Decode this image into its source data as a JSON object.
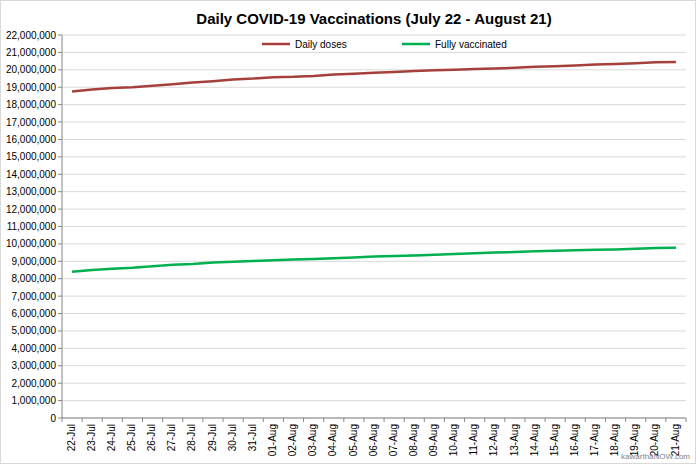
{
  "chart_data": {
    "type": "line",
    "title": "Daily COVID-19 Vaccinations (July 22 - August 21)",
    "credit": "kawarthaNOW.com",
    "categories": [
      "22-Jul",
      "23-Jul",
      "24-Jul",
      "25-Jul",
      "26-Jul",
      "27-Jul",
      "28-Jul",
      "29-Jul",
      "30-Jul",
      "31-Jul",
      "01-Aug",
      "02-Aug",
      "03-Aug",
      "04-Aug",
      "05-Aug",
      "06-Aug",
      "07-Aug",
      "08-Aug",
      "09-Aug",
      "10-Aug",
      "11-Aug",
      "12-Aug",
      "13-Aug",
      "14-Aug",
      "15-Aug",
      "16-Aug",
      "17-Aug",
      "18-Aug",
      "19-Aug",
      "20-Aug",
      "21-Aug"
    ],
    "series": [
      {
        "name": "Daily doses",
        "color": "#a5403c",
        "values": [
          18750000,
          18870000,
          18950000,
          19000000,
          19080000,
          19170000,
          19270000,
          19350000,
          19450000,
          19500000,
          19580000,
          19600000,
          19650000,
          19730000,
          19780000,
          19830000,
          19880000,
          19930000,
          19970000,
          20000000,
          20050000,
          20080000,
          20120000,
          20170000,
          20200000,
          20250000,
          20300000,
          20340000,
          20380000,
          20430000,
          20450000
        ]
      },
      {
        "name": "Fully vaccinated",
        "color": "#00b050",
        "values": [
          8400000,
          8500000,
          8580000,
          8630000,
          8720000,
          8800000,
          8850000,
          8930000,
          8980000,
          9020000,
          9060000,
          9100000,
          9140000,
          9180000,
          9220000,
          9270000,
          9300000,
          9340000,
          9380000,
          9420000,
          9470000,
          9500000,
          9530000,
          9580000,
          9600000,
          9630000,
          9660000,
          9680000,
          9720000,
          9760000,
          9780000
        ]
      }
    ],
    "ylim": [
      0,
      22000000
    ],
    "yticks": [
      0,
      {
        "value": 1000000,
        "label": "1,000,000"
      },
      {
        "value": 2000000,
        "label": "2,000,000"
      },
      {
        "value": 3000000,
        "label": "3,000,000"
      },
      {
        "value": 4000000,
        "label": "4,000,000"
      },
      {
        "value": 5000000,
        "label": "5,000,000"
      },
      {
        "value": 6000000,
        "label": "6,000,000"
      },
      {
        "value": 7000000,
        "label": "7,000,000"
      },
      {
        "value": 8000000,
        "label": "8,000,000"
      },
      {
        "value": 9000000,
        "label": "9,000,000"
      },
      {
        "value": 10000000,
        "label": "10,000,000"
      },
      {
        "value": 11000000,
        "label": "11,000,000"
      },
      {
        "value": 12000000,
        "label": "12,000,000"
      },
      {
        "value": 13000000,
        "label": "13,000,000"
      },
      {
        "value": 14000000,
        "label": "14,000,000"
      },
      {
        "value": 15000000,
        "label": "15,000,000"
      },
      {
        "value": 16000000,
        "label": "16,000,000"
      },
      {
        "value": 17000000,
        "label": "17,000,000"
      },
      {
        "value": 18000000,
        "label": "18,000,000"
      },
      {
        "value": 19000000,
        "label": "19,000,000"
      },
      {
        "value": 20000000,
        "label": "20,000,000"
      },
      {
        "value": 21000000,
        "label": "21,000,000"
      },
      {
        "value": 22000000,
        "label": "22,000,000"
      }
    ],
    "grid": true,
    "legend": "top"
  }
}
